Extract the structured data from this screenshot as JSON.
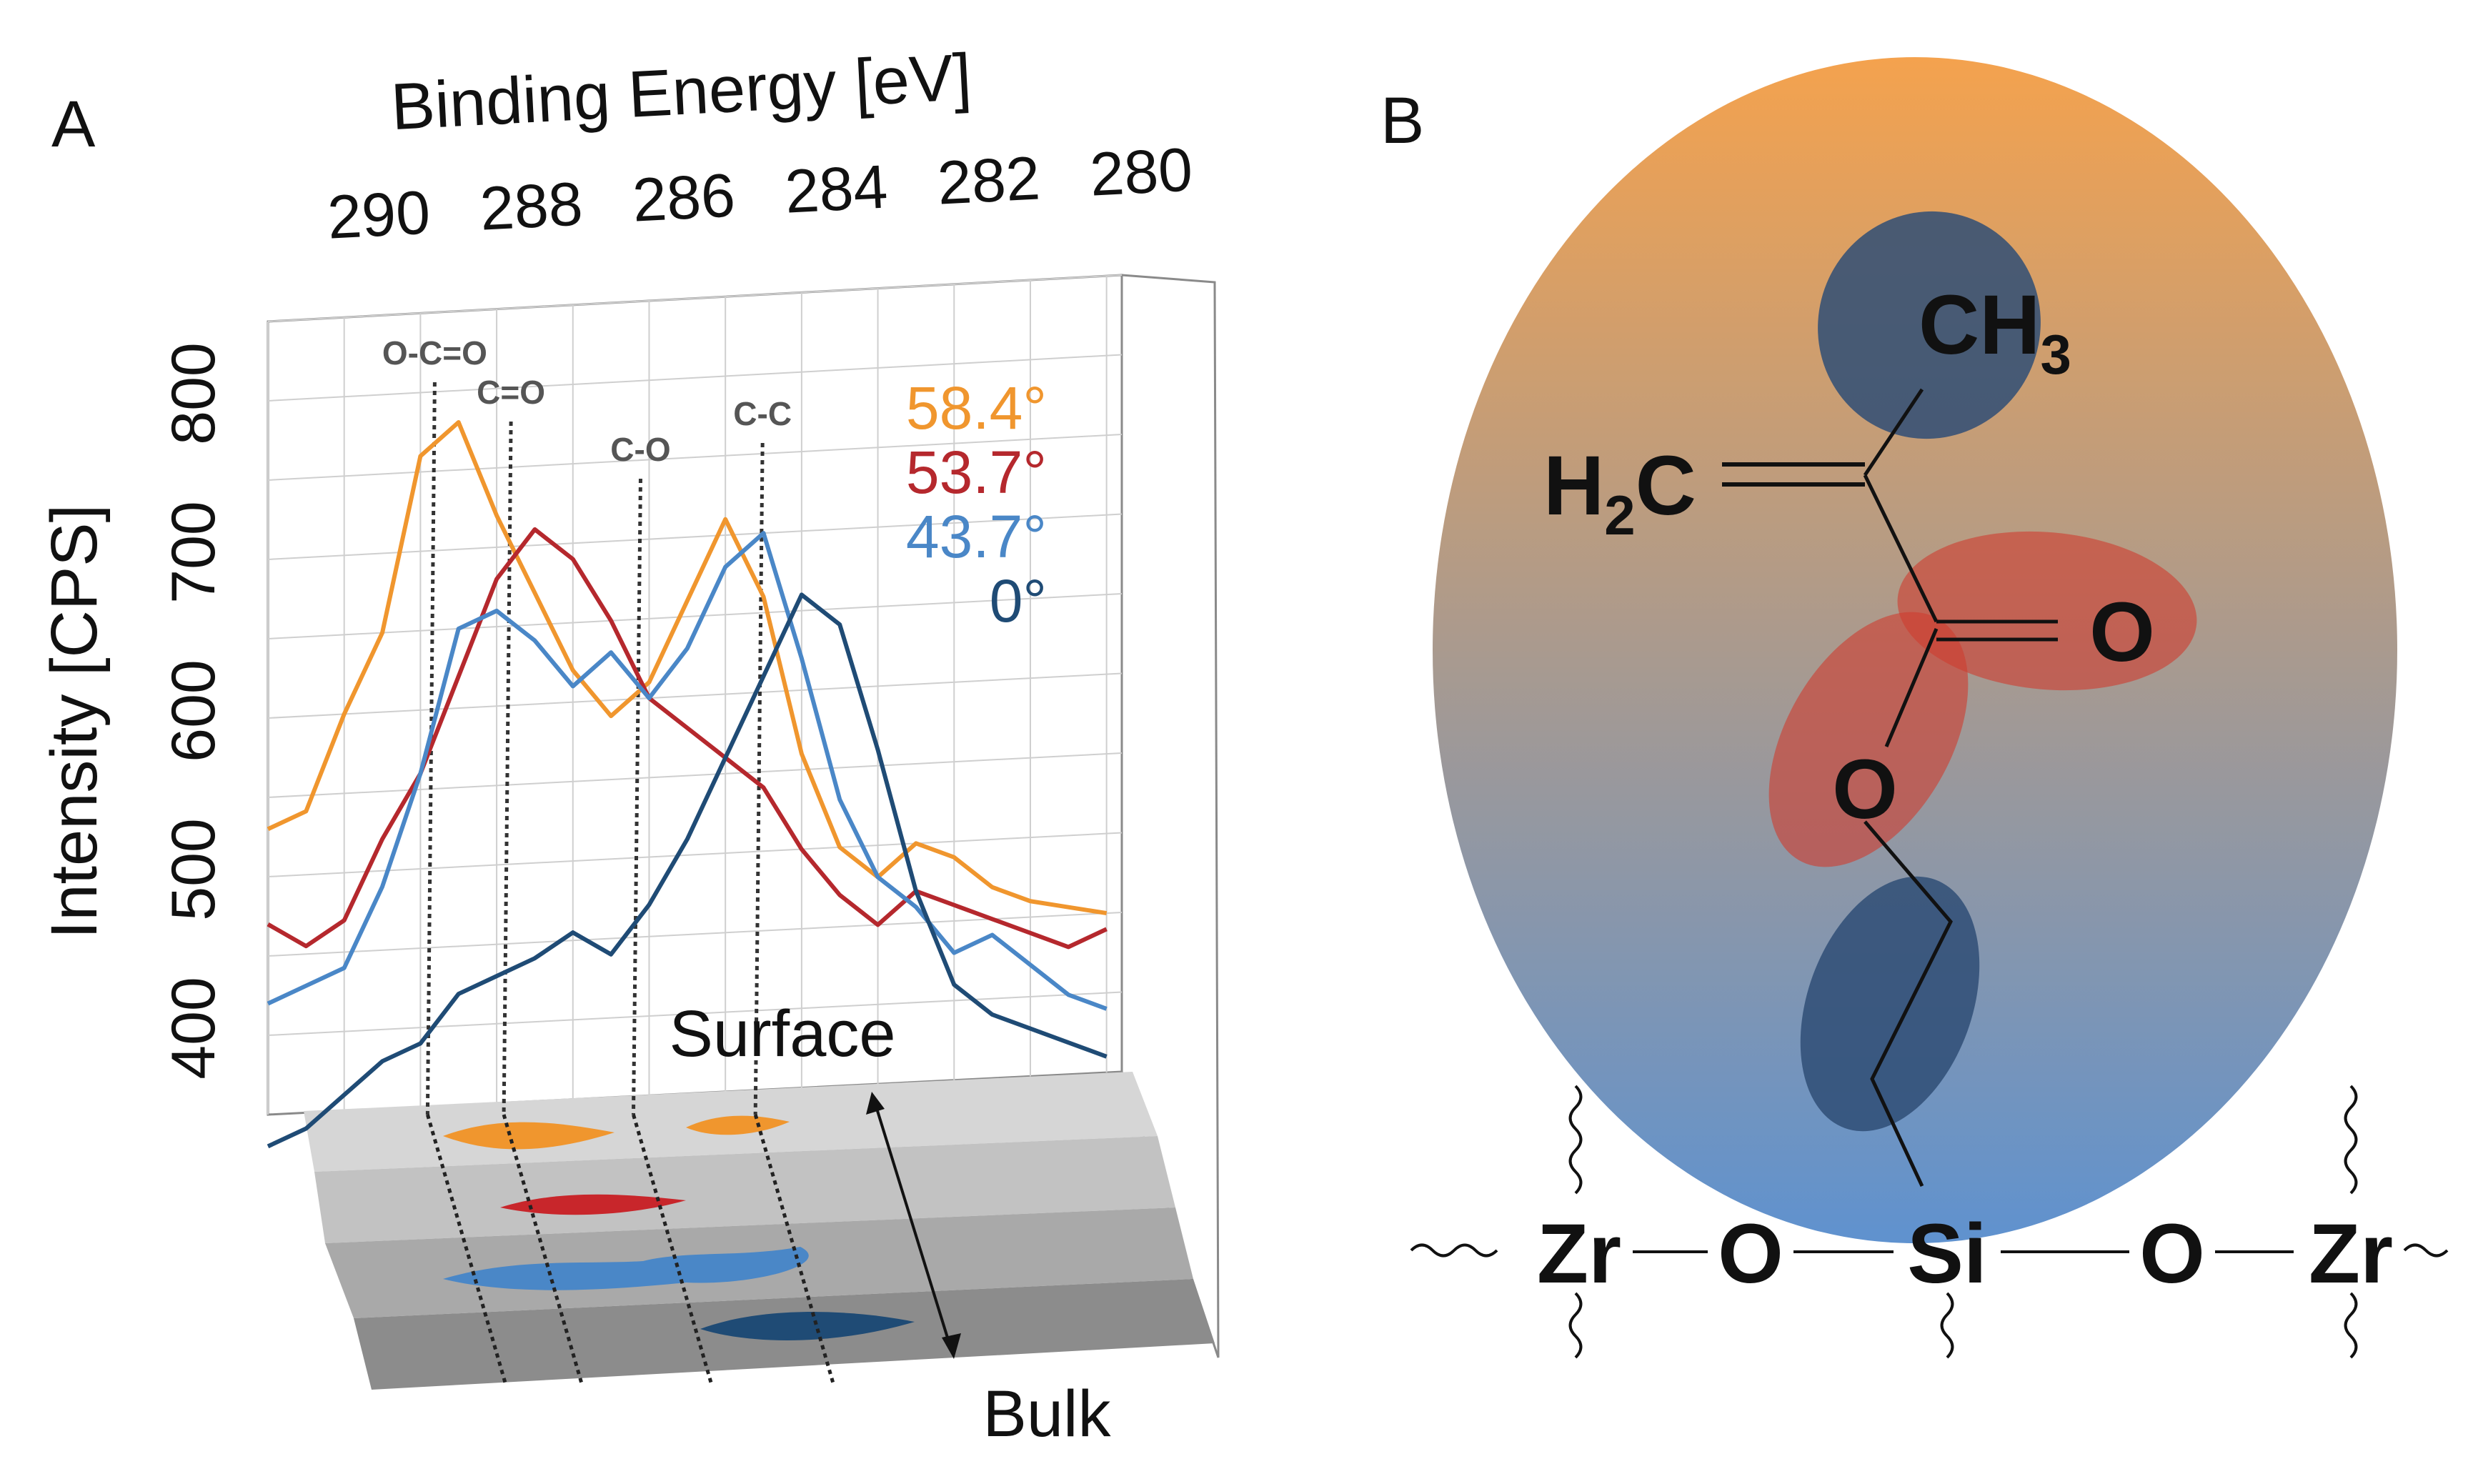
{
  "panel_a": {
    "label": "A",
    "chart_data": {
      "type": "line",
      "title": "",
      "xlabel": "Binding Energy [eV]",
      "ylabel": "Intensity [CPS]",
      "x_ticks": [
        "290",
        "288",
        "286",
        "284",
        "282",
        "280"
      ],
      "y_ticks": [
        "400",
        "500",
        "600",
        "700",
        "800"
      ],
      "xlim": [
        291,
        279.8
      ],
      "ylim": [
        350,
        850
      ],
      "x_reversed": true,
      "grid": true,
      "peak_labels": [
        {
          "text": "O-C=O",
          "x": 289.0
        },
        {
          "text": "C=O",
          "x": 288.0
        },
        {
          "text": "C-O",
          "x": 286.3
        },
        {
          "text": "C-C",
          "x": 284.7
        }
      ],
      "depth_labels": {
        "top": "Surface",
        "bottom": "Bulk"
      },
      "x": [
        291.0,
        290.5,
        290.0,
        289.5,
        289.0,
        288.5,
        288.0,
        287.5,
        287.0,
        286.5,
        286.0,
        285.5,
        285.0,
        284.5,
        284.0,
        283.5,
        283.0,
        282.5,
        282.0,
        281.5,
        281.0,
        280.5,
        280.0
      ],
      "series": [
        {
          "name": "58.4°",
          "color": "#f0962e",
          "values": [
            530,
            540,
            600,
            650,
            760,
            780,
            720,
            670,
            620,
            590,
            610,
            660,
            710,
            660,
            560,
            500,
            480,
            500,
            490,
            470,
            460,
            455,
            450
          ]
        },
        {
          "name": "53.7°",
          "color": "#b5282d",
          "values": [
            470,
            455,
            470,
            520,
            560,
            620,
            680,
            710,
            690,
            650,
            600,
            580,
            560,
            540,
            500,
            470,
            450,
            470,
            460,
            450,
            440,
            430,
            440
          ]
        },
        {
          "name": "43.7°",
          "color": "#4a87c7",
          "values": [
            420,
            430,
            440,
            490,
            560,
            650,
            660,
            640,
            610,
            630,
            600,
            630,
            680,
            700,
            620,
            530,
            480,
            460,
            430,
            440,
            420,
            400,
            390
          ]
        },
        {
          "name": "0°",
          "color": "#1f4b75",
          "values": [
            330,
            340,
            360,
            380,
            390,
            420,
            430,
            440,
            455,
            440,
            470,
            510,
            560,
            610,
            660,
            640,
            560,
            470,
            410,
            390,
            380,
            370,
            360
          ]
        }
      ]
    }
  },
  "panel_b": {
    "label": "B",
    "molecule": {
      "ch3": "CH",
      "ch3_sub": "3",
      "h2c_h": "H",
      "h2c_sub": "2",
      "h2c_c": "C",
      "carbonyl_o": "O",
      "ester_o": "O",
      "substrate": [
        "Zr",
        "O",
        "Si",
        "O",
        "Zr"
      ]
    },
    "colors": {
      "ellipse_top": "#f4a24e",
      "ellipse_bottom": "#5f92cf",
      "blue_region": "#2f4e75",
      "red_region": "#cf3c2f"
    }
  }
}
